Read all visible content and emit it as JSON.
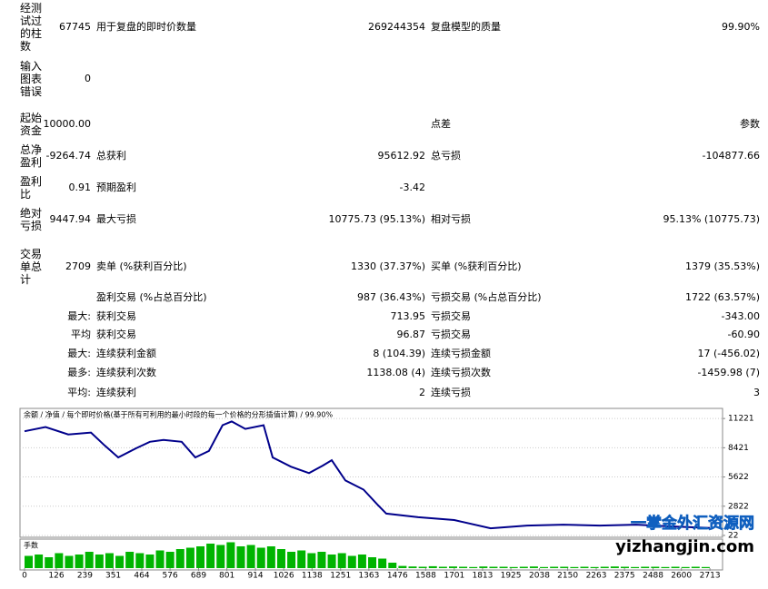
{
  "report": {
    "rows": [
      {
        "label": "经测试过的柱数",
        "value": "67745",
        "label2": "用于复盘的即时价数量",
        "value2": "269244354",
        "label3": "复盘模型的质量",
        "value3": "99.90%"
      },
      {
        "label": "输入图表错误",
        "value": "0"
      },
      {
        "label": "起始资金",
        "value": "10000.00",
        "label3": "点差",
        "value3": "参数"
      },
      {
        "label": "总净盈利",
        "value": "-9264.74",
        "label2": "总获利",
        "value2": "95612.92",
        "label3": "总亏损",
        "value3": "-104877.66"
      },
      {
        "label": "盈利比",
        "value": "0.91",
        "label2": "预期盈利",
        "value2": "-3.42"
      },
      {
        "label": "绝对亏损",
        "value": "9447.94",
        "label2": "最大亏损",
        "value2": "10775.73 (95.13%)",
        "label3": "相对亏损",
        "value3": "95.13% (10775.73)"
      },
      {
        "label": "交易单总计",
        "value": "2709",
        "label2": "卖单 (%获利百分比)",
        "value2": "1330 (37.37%)",
        "label3": "买单 (%获利百分比)",
        "value3": "1379 (35.53%)"
      },
      {
        "label2": "盈利交易 (%占总百分比)",
        "value2": "987 (36.43%)",
        "label3": "亏损交易 (%占总百分比)",
        "value3": "1722 (63.57%)"
      },
      {
        "value": "最大:",
        "label2": "获利交易",
        "value2": "713.95",
        "label3": "亏损交易",
        "value3": "-343.00"
      },
      {
        "value": "平均",
        "label2": "获利交易",
        "value2": "96.87",
        "label3": "亏损交易",
        "value3": "-60.90"
      },
      {
        "value": "最大:",
        "label2": "连续获利金额",
        "value2": "8 (104.39)",
        "label3": "连续亏损金额",
        "value3": "17 (-456.02)"
      },
      {
        "value": "最多:",
        "label2": "连续获利次数",
        "value2": "1138.08 (4)",
        "label3": "连续亏损次数",
        "value3": "-1459.98 (7)"
      },
      {
        "value": "平均:",
        "label2": "连续获利",
        "value2": "2",
        "label3": "连续亏损",
        "value3": "3"
      }
    ]
  },
  "chart_data": {
    "type": "line",
    "legend_text": "余额 / 净值 / 每个即时价格(基于所有可利用的最小时段的每一个价格的分形插值计算) / 99.90%",
    "x": [
      0,
      83,
      173,
      263,
      317,
      371,
      442,
      496,
      550,
      622,
      676,
      730,
      784,
      820,
      874,
      946,
      982,
      1054,
      1126,
      1180,
      1216,
      1270,
      1342,
      1396,
      1432,
      1558,
      1701,
      1845,
      1989,
      2133,
      2277,
      2421,
      2565,
      2713
    ],
    "series": [
      {
        "color": "#00008b",
        "values": [
          10000,
          10406,
          9700,
          9877,
          8642,
          7496,
          8377,
          8995,
          9171,
          8995,
          7496,
          8113,
          10582,
          10935,
          10229,
          10582,
          7496,
          6614,
          5996,
          6702,
          7231,
          5291,
          4409,
          2998,
          2116,
          1764,
          1499,
          705,
          970,
          1058,
          970,
          1058,
          882,
          735
        ]
      }
    ],
    "xlim": [
      -18,
      2763
    ],
    "xticks": [
      0,
      126,
      239,
      351,
      464,
      576,
      689,
      801,
      914,
      1026,
      1138,
      1251,
      1363,
      1476,
      1588,
      1701,
      1813,
      1925,
      2038,
      2150,
      2263,
      2375,
      2488,
      2600,
      2713
    ],
    "ylim": [
      -154,
      12191
    ],
    "yticks": [
      11221,
      8421,
      5622,
      2822,
      22
    ],
    "grid": true,
    "volume": {
      "label": "手数",
      "color": "#00b400",
      "x": [
        0,
        40,
        80,
        120,
        160,
        200,
        240,
        280,
        320,
        360,
        400,
        440,
        480,
        520,
        560,
        600,
        640,
        680,
        720,
        760,
        800,
        840,
        880,
        920,
        960,
        1000,
        1040,
        1080,
        1120,
        1160,
        1200,
        1240,
        1280,
        1320,
        1360,
        1400,
        1440,
        1480,
        1520,
        1560,
        1600,
        1640,
        1680,
        1720,
        1760,
        1800,
        1840,
        1880,
        1920,
        1960,
        2000,
        2040,
        2080,
        2120,
        2160,
        2200,
        2240,
        2280,
        2320,
        2360,
        2400,
        2440,
        2480,
        2520,
        2560,
        2600,
        2640,
        2680
      ],
      "values": [
        0.45,
        0.5,
        0.4,
        0.55,
        0.45,
        0.5,
        0.6,
        0.5,
        0.55,
        0.45,
        0.6,
        0.55,
        0.5,
        0.65,
        0.6,
        0.7,
        0.75,
        0.8,
        0.9,
        0.85,
        0.95,
        0.8,
        0.85,
        0.75,
        0.8,
        0.7,
        0.6,
        0.65,
        0.55,
        0.6,
        0.5,
        0.55,
        0.45,
        0.5,
        0.4,
        0.35,
        0.2,
        0.08,
        0.06,
        0.05,
        0.07,
        0.05,
        0.06,
        0.05,
        0.04,
        0.06,
        0.05,
        0.05,
        0.04,
        0.05,
        0.06,
        0.04,
        0.05,
        0.05,
        0.04,
        0.05,
        0.04,
        0.05,
        0.06,
        0.05,
        0.04,
        0.05,
        0.05,
        0.04,
        0.05,
        0.04,
        0.05,
        0.04
      ],
      "ylim": [
        0,
        1
      ]
    }
  },
  "watermark": {
    "cn": "一掌金外汇资源网",
    "site": "yizhangjin.com"
  }
}
